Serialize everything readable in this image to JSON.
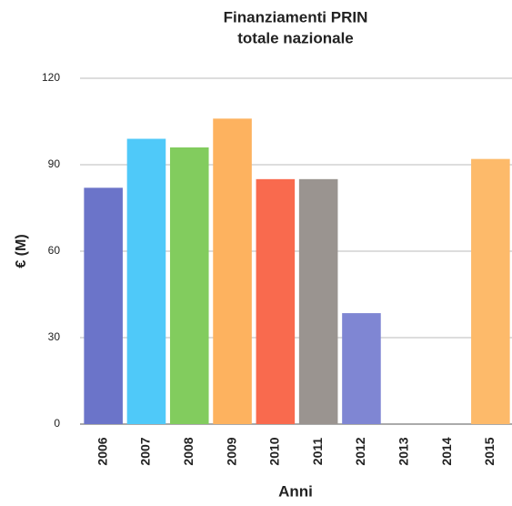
{
  "chart_data": {
    "type": "bar",
    "title": "Finanziamenti PRIN",
    "subtitle": "totale nazionale",
    "y_label": "€ (M)",
    "x_label": "Anni",
    "categories": [
      "2006",
      "2007",
      "2008",
      "2009",
      "2010",
      "2011",
      "2012",
      "2013",
      "2014",
      "2015"
    ],
    "values": [
      82,
      99,
      96,
      106,
      85,
      85,
      38.5,
      null,
      null,
      92
    ],
    "colors": [
      "#6b74c9",
      "#4fc9f9",
      "#82cc5e",
      "#fdb25f",
      "#f96a4e",
      "#9a9490",
      "#7f86d3",
      "#cccccc",
      "#cccccc",
      "#fdba6a"
    ],
    "ylim": [
      0,
      120
    ],
    "yticks": [
      0,
      30,
      60,
      90,
      120
    ],
    "grid": true
  }
}
